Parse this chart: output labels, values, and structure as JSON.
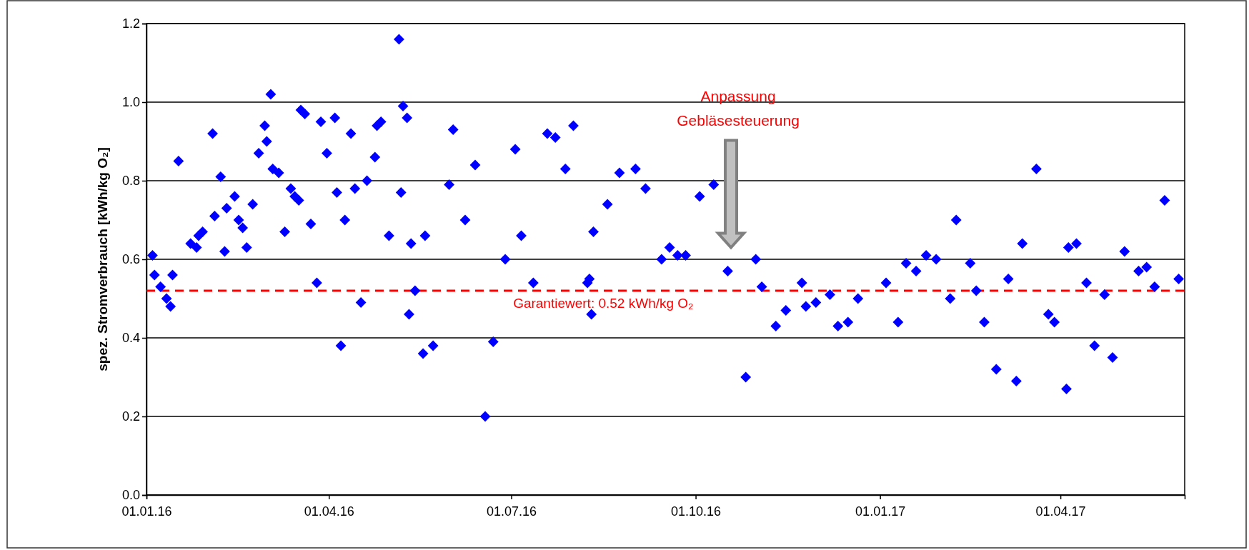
{
  "chart_data": {
    "type": "scatter",
    "ylabel": "spez. Stromverbrauch [kWh/kg O₂]",
    "x": [
      "2016-01-04",
      "2016-01-05",
      "2016-01-08",
      "2016-01-11",
      "2016-01-13",
      "2016-01-14",
      "2016-01-17",
      "2016-01-23",
      "2016-01-26",
      "2016-01-27",
      "2016-01-29",
      "2016-02-03",
      "2016-02-04",
      "2016-02-07",
      "2016-02-09",
      "2016-02-10",
      "2016-02-14",
      "2016-02-16",
      "2016-02-18",
      "2016-02-20",
      "2016-02-23",
      "2016-02-26",
      "2016-02-29",
      "2016-03-01",
      "2016-03-03",
      "2016-03-04",
      "2016-03-07",
      "2016-03-10",
      "2016-03-13",
      "2016-03-15",
      "2016-03-17",
      "2016-03-18",
      "2016-03-20",
      "2016-03-23",
      "2016-03-26",
      "2016-03-28",
      "2016-03-31",
      "2016-04-04",
      "2016-04-05",
      "2016-04-07",
      "2016-04-09",
      "2016-04-12",
      "2016-04-14",
      "2016-04-17",
      "2016-04-20",
      "2016-04-24",
      "2016-04-25",
      "2016-04-27",
      "2016-05-01",
      "2016-05-06",
      "2016-05-07",
      "2016-05-08",
      "2016-05-10",
      "2016-05-11",
      "2016-05-12",
      "2016-05-14",
      "2016-05-18",
      "2016-05-19",
      "2016-05-23",
      "2016-05-31",
      "2016-06-02",
      "2016-06-08",
      "2016-06-13",
      "2016-06-18",
      "2016-06-22",
      "2016-06-28",
      "2016-07-03",
      "2016-07-06",
      "2016-07-12",
      "2016-07-19",
      "2016-07-23",
      "2016-07-28",
      "2016-08-01",
      "2016-08-08",
      "2016-08-09",
      "2016-08-10",
      "2016-08-11",
      "2016-08-18",
      "2016-08-24",
      "2016-09-01",
      "2016-09-06",
      "2016-09-14",
      "2016-09-18",
      "2016-09-22",
      "2016-09-26",
      "2016-10-03",
      "2016-10-10",
      "2016-10-17",
      "2016-10-26",
      "2016-10-31",
      "2016-11-03",
      "2016-11-10",
      "2016-11-15",
      "2016-11-23",
      "2016-11-25",
      "2016-11-30",
      "2016-12-07",
      "2016-12-11",
      "2016-12-16",
      "2016-12-21",
      "2017-01-04",
      "2017-01-10",
      "2017-01-14",
      "2017-01-19",
      "2017-01-24",
      "2017-01-29",
      "2017-02-05",
      "2017-02-08",
      "2017-02-15",
      "2017-02-18",
      "2017-02-22",
      "2017-02-28",
      "2017-03-06",
      "2017-03-10",
      "2017-03-13",
      "2017-03-20",
      "2017-03-26",
      "2017-03-29",
      "2017-04-04",
      "2017-04-05",
      "2017-04-09",
      "2017-04-14",
      "2017-04-18",
      "2017-04-23",
      "2017-04-27",
      "2017-05-03",
      "2017-05-10",
      "2017-05-14",
      "2017-05-18",
      "2017-05-23",
      "2017-05-30"
    ],
    "series": [
      {
        "color": "#0000ff",
        "values": [
          0.61,
          0.56,
          0.53,
          0.5,
          0.48,
          0.56,
          0.85,
          0.64,
          0.63,
          0.66,
          0.67,
          0.92,
          0.71,
          0.81,
          0.62,
          0.73,
          0.76,
          0.7,
          0.68,
          0.63,
          0.74,
          0.87,
          0.94,
          0.9,
          1.02,
          0.83,
          0.82,
          0.67,
          0.78,
          0.76,
          0.75,
          0.98,
          0.97,
          0.69,
          0.54,
          0.95,
          0.87,
          0.96,
          0.77,
          0.38,
          0.7,
          0.92,
          0.78,
          0.49,
          0.8,
          0.86,
          0.94,
          0.95,
          0.66,
          1.16,
          0.77,
          0.99,
          0.96,
          0.46,
          0.64,
          0.52,
          0.36,
          0.66,
          0.38,
          0.79,
          0.93,
          0.7,
          0.84,
          0.2,
          0.39,
          0.6,
          0.88,
          0.66,
          0.54,
          0.92,
          0.91,
          0.83,
          0.94,
          0.54,
          0.55,
          0.46,
          0.67,
          0.74,
          0.82,
          0.83,
          0.78,
          0.6,
          0.63,
          0.61,
          0.61,
          0.76,
          0.79,
          0.57,
          0.3,
          0.6,
          0.53,
          0.43,
          0.47,
          0.54,
          0.48,
          0.49,
          0.51,
          0.43,
          0.44,
          0.5,
          0.54,
          0.44,
          0.59,
          0.57,
          0.61,
          0.6,
          0.5,
          0.7,
          0.59,
          0.52,
          0.44,
          0.32,
          0.55,
          0.29,
          0.64,
          0.83,
          0.46,
          0.44,
          0.27,
          0.63,
          0.64,
          0.54,
          0.38,
          0.51,
          0.35,
          0.62,
          0.57,
          0.58,
          0.53,
          0.75,
          0.55
        ]
      }
    ],
    "xlim": [
      "2016-01-01",
      "2017-06-02"
    ],
    "xticks": [
      {
        "value": "2016-01-01",
        "label": "01.01.16"
      },
      {
        "value": "2016-04-01",
        "label": "01.04.16"
      },
      {
        "value": "2016-07-01",
        "label": "01.07.16"
      },
      {
        "value": "2016-10-01",
        "label": "01.10.16"
      },
      {
        "value": "2017-01-01",
        "label": "01.01.17"
      },
      {
        "value": "2017-04-01",
        "label": "01.04.17"
      }
    ],
    "ylim": [
      0,
      1.2
    ],
    "yticks": [
      {
        "value": 0,
        "label": "0.0"
      },
      {
        "value": 0.2,
        "label": "0.2"
      },
      {
        "value": 0.4,
        "label": "0.4"
      },
      {
        "value": 0.6,
        "label": "0.6"
      },
      {
        "value": 0.8,
        "label": "0.8"
      },
      {
        "value": 1.0,
        "label": "1.0"
      },
      {
        "value": 1.2,
        "label": "1.2"
      }
    ],
    "grid": "y",
    "marker": "diamond",
    "ref_lines": [
      {
        "axis": "y",
        "value": 0.52,
        "label": "Garantiewert: 0.52 kWh/kg O₂",
        "color": "#ff0000",
        "line_style": "dashed"
      }
    ],
    "annotations": [
      "Anpassung Gebläsesteuerung"
    ]
  }
}
